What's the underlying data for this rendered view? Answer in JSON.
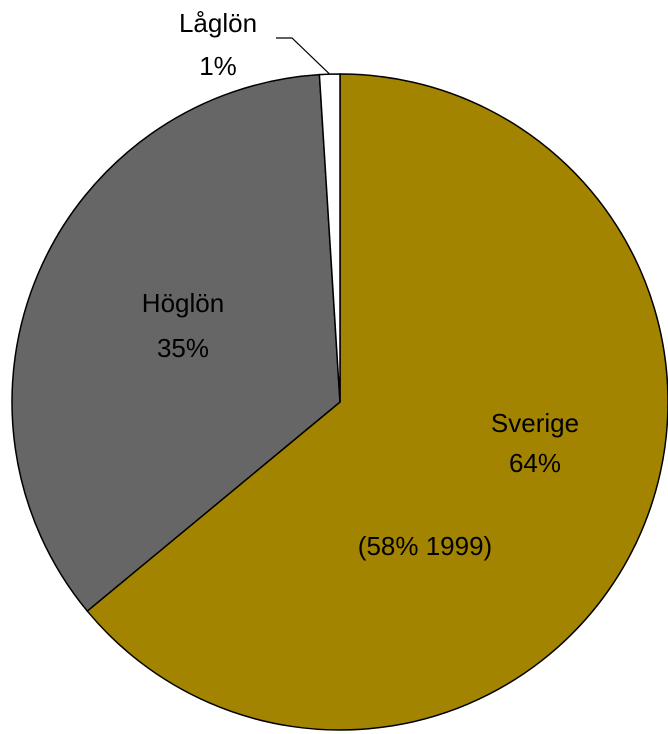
{
  "chart_data": {
    "type": "pie",
    "categories": [
      "Sverige",
      "Höglön",
      "Låglön"
    ],
    "values": [
      64,
      35,
      1
    ],
    "value_labels": [
      "64%",
      "35%",
      "1%"
    ],
    "colors": [
      "#a38400",
      "#666666",
      "#ffffff"
    ],
    "annotation": "(58% 1999)"
  }
}
